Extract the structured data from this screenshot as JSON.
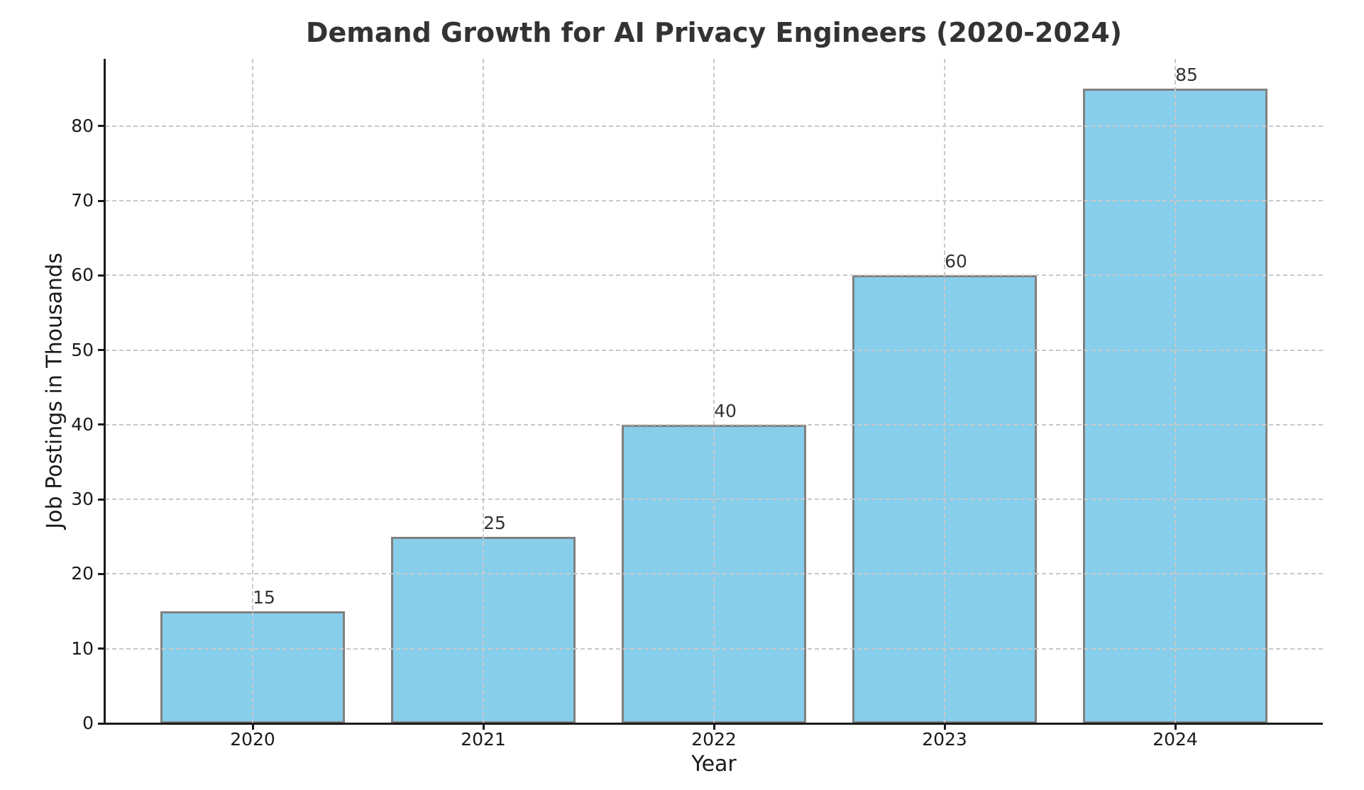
{
  "chart_data": {
    "type": "bar",
    "title": "Demand Growth for AI Privacy Engineers (2020-2024)",
    "xlabel": "Year",
    "ylabel": "Job Postings in Thousands",
    "categories": [
      "2020",
      "2021",
      "2022",
      "2023",
      "2024"
    ],
    "values": [
      15,
      25,
      40,
      60,
      85
    ],
    "value_labels": [
      "15",
      "25",
      "40",
      "60",
      "85"
    ],
    "yticks": [
      0,
      10,
      20,
      30,
      40,
      50,
      60,
      70,
      80
    ],
    "ylim": [
      0,
      89
    ],
    "bar_color": "#87CEEB",
    "bar_edge_color": "#808080",
    "grid": "dashed",
    "grid_color": "#c9c9c9",
    "spine_color": "#1a1a1a",
    "title_color": "#333333",
    "legend": "none",
    "background": "#ffffff"
  }
}
